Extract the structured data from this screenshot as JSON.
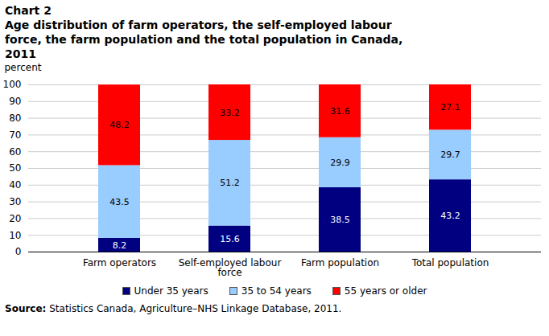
{
  "chart_data": {
    "type": "bar",
    "title": "Chart 2",
    "subtitle": "Age distribution of farm operators, the self-employed labour force, the farm population and the total population in Canada, 2011",
    "y_label": "percent",
    "source": "Source: Statistics Canada, Agriculture–NHS Linkage Database, 2011.",
    "categories": [
      "Farm operators",
      "Self-employed labour force",
      "Farm population",
      "Total population"
    ],
    "series": [
      {
        "name": "Under 35 years",
        "color": "#000080",
        "values": [
          8.2,
          15.6,
          38.5,
          43.2
        ]
      },
      {
        "name": "35 to 54 years",
        "color": "#99ccff",
        "values": [
          43.5,
          51.2,
          29.9,
          29.7
        ]
      },
      {
        "name": "55 years or older",
        "color": "#ff0000",
        "values": [
          48.2,
          33.2,
          31.6,
          27.1
        ]
      }
    ],
    "ylim": [
      0,
      100
    ],
    "yticks": [
      0,
      10,
      20,
      30,
      40,
      50,
      60,
      70,
      80,
      90,
      100
    ],
    "stacked": true,
    "data_labels": true,
    "grid": true,
    "legend": "bottom"
  }
}
